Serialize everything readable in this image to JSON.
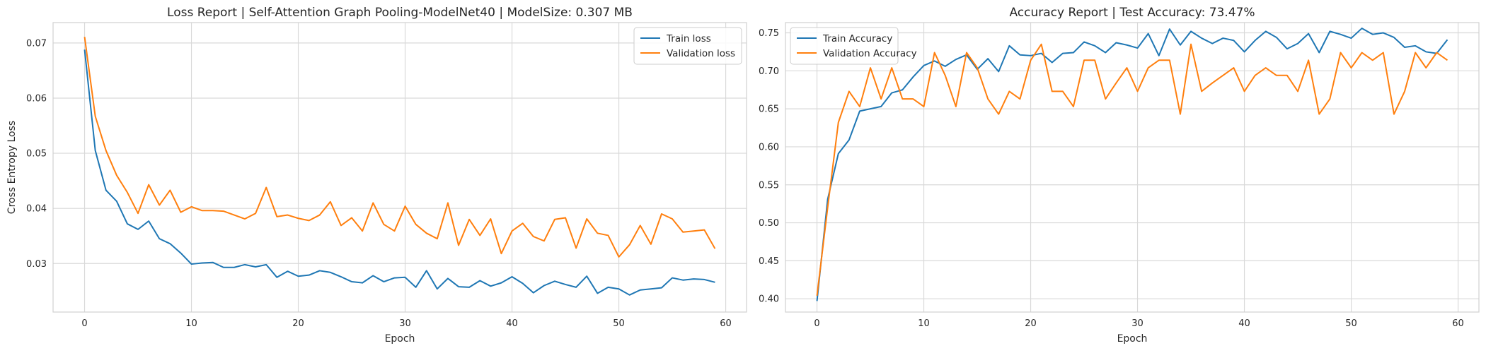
{
  "chart_data": [
    {
      "type": "line",
      "title": "Loss Report | Self-Attention Graph Pooling-ModelNet40 | ModelSize: 0.307 MB",
      "xlabel": "Epoch",
      "ylabel": "Cross Entropy Loss",
      "xlim": [
        -2.95,
        61.95
      ],
      "ylim": [
        0.0212,
        0.0737
      ],
      "xticks": [
        0,
        10,
        20,
        30,
        40,
        50,
        60
      ],
      "yticks": [
        0.03,
        0.04,
        0.05,
        0.06,
        0.07
      ],
      "grid": true,
      "legend_position": "top-right",
      "x": [
        0,
        1,
        2,
        3,
        4,
        5,
        6,
        7,
        8,
        9,
        10,
        11,
        12,
        13,
        14,
        15,
        16,
        17,
        18,
        19,
        20,
        21,
        22,
        23,
        24,
        25,
        26,
        27,
        28,
        29,
        30,
        31,
        32,
        33,
        34,
        35,
        36,
        37,
        38,
        39,
        40,
        41,
        42,
        43,
        44,
        45,
        46,
        47,
        48,
        49,
        50,
        51,
        52,
        53,
        54,
        55,
        56,
        57,
        58,
        59
      ],
      "series": [
        {
          "name": "Train loss",
          "color": "#1f77b4",
          "values": [
            0.0688,
            0.0505,
            0.0433,
            0.0413,
            0.0372,
            0.0362,
            0.0377,
            0.0345,
            0.0336,
            0.0319,
            0.0299,
            0.0301,
            0.0302,
            0.0293,
            0.0293,
            0.0298,
            0.0294,
            0.0298,
            0.0275,
            0.0286,
            0.0277,
            0.0279,
            0.0287,
            0.0284,
            0.0276,
            0.0267,
            0.0265,
            0.0278,
            0.0267,
            0.0274,
            0.0275,
            0.0257,
            0.0287,
            0.0254,
            0.0273,
            0.0258,
            0.0257,
            0.0269,
            0.0259,
            0.0265,
            0.0276,
            0.0264,
            0.0247,
            0.026,
            0.0268,
            0.0262,
            0.0257,
            0.0277,
            0.0246,
            0.0257,
            0.0254,
            0.0243,
            0.0252,
            0.0254,
            0.0256,
            0.0274,
            0.027,
            0.0272,
            0.0271,
            0.0266
          ]
        },
        {
          "name": "Validation loss",
          "color": "#ff7f0e",
          "values": [
            0.0711,
            0.0567,
            0.0505,
            0.046,
            0.0429,
            0.0391,
            0.0443,
            0.0406,
            0.0433,
            0.0393,
            0.0403,
            0.0396,
            0.0396,
            0.0395,
            0.0388,
            0.0381,
            0.0391,
            0.0438,
            0.0385,
            0.0388,
            0.0382,
            0.0378,
            0.0388,
            0.0412,
            0.0369,
            0.0383,
            0.0359,
            0.041,
            0.0371,
            0.0359,
            0.0404,
            0.0371,
            0.0355,
            0.0345,
            0.041,
            0.0333,
            0.038,
            0.0351,
            0.0381,
            0.0318,
            0.0359,
            0.0373,
            0.0349,
            0.0341,
            0.038,
            0.0383,
            0.0328,
            0.0381,
            0.0355,
            0.0351,
            0.0312,
            0.0334,
            0.0369,
            0.0335,
            0.039,
            0.0381,
            0.0357,
            0.0359,
            0.0361,
            0.0327
          ]
        }
      ]
    },
    {
      "type": "line",
      "title": "Accuracy Report | Test Accuracy: 73.47%",
      "xlabel": "Epoch",
      "ylabel": "",
      "xlim": [
        -2.95,
        61.95
      ],
      "ylim": [
        0.3825,
        0.7635
      ],
      "xticks": [
        0,
        10,
        20,
        30,
        40,
        50,
        60
      ],
      "yticks": [
        0.4,
        0.45,
        0.5,
        0.55,
        0.6,
        0.65,
        0.7,
        0.75
      ],
      "grid": true,
      "legend_position": "top-left",
      "x": [
        0,
        1,
        2,
        3,
        4,
        5,
        6,
        7,
        8,
        9,
        10,
        11,
        12,
        13,
        14,
        15,
        16,
        17,
        18,
        19,
        20,
        21,
        22,
        23,
        24,
        25,
        26,
        27,
        28,
        29,
        30,
        31,
        32,
        33,
        34,
        35,
        36,
        37,
        38,
        39,
        40,
        41,
        42,
        43,
        44,
        45,
        46,
        47,
        48,
        49,
        50,
        51,
        52,
        53,
        54,
        55,
        56,
        57,
        58,
        59
      ],
      "series": [
        {
          "name": "Train Accuracy",
          "color": "#1f77b4",
          "values": [
            0.397,
            0.531,
            0.591,
            0.609,
            0.647,
            0.65,
            0.653,
            0.671,
            0.675,
            0.692,
            0.707,
            0.713,
            0.706,
            0.715,
            0.721,
            0.702,
            0.716,
            0.699,
            0.733,
            0.721,
            0.72,
            0.723,
            0.711,
            0.723,
            0.724,
            0.738,
            0.733,
            0.724,
            0.737,
            0.734,
            0.73,
            0.749,
            0.72,
            0.755,
            0.734,
            0.752,
            0.743,
            0.736,
            0.743,
            0.74,
            0.725,
            0.74,
            0.752,
            0.744,
            0.729,
            0.736,
            0.749,
            0.724,
            0.752,
            0.748,
            0.743,
            0.756,
            0.748,
            0.75,
            0.744,
            0.731,
            0.733,
            0.725,
            0.723,
            0.741
          ]
        },
        {
          "name": "Validation Accuracy",
          "color": "#ff7f0e",
          "values": [
            0.404,
            0.52,
            0.632,
            0.673,
            0.653,
            0.704,
            0.663,
            0.704,
            0.663,
            0.663,
            0.653,
            0.724,
            0.694,
            0.653,
            0.724,
            0.704,
            0.663,
            0.643,
            0.673,
            0.663,
            0.714,
            0.735,
            0.673,
            0.673,
            0.653,
            0.714,
            0.714,
            0.663,
            0.684,
            0.704,
            0.673,
            0.704,
            0.714,
            0.714,
            0.643,
            0.735,
            0.673,
            0.684,
            0.694,
            0.704,
            0.673,
            0.694,
            0.704,
            0.694,
            0.694,
            0.673,
            0.714,
            0.643,
            0.663,
            0.724,
            0.704,
            0.724,
            0.714,
            0.724,
            0.643,
            0.673,
            0.724,
            0.704,
            0.724,
            0.714
          ]
        }
      ]
    }
  ]
}
